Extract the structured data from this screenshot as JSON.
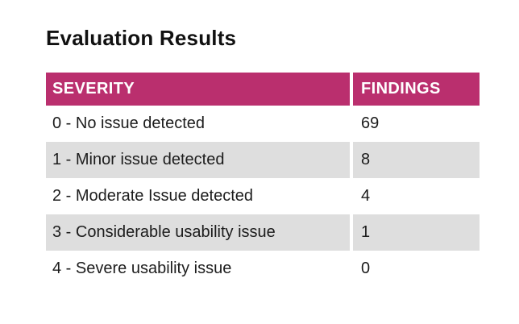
{
  "title": "Evaluation Results",
  "table": {
    "columns": [
      "SEVERITY",
      "FINDINGS"
    ],
    "rows": [
      {
        "severity": "0 - No issue detected",
        "findings": "69"
      },
      {
        "severity": "1 - Minor issue detected",
        "findings": "8"
      },
      {
        "severity": "2 - Moderate Issue detected",
        "findings": "4"
      },
      {
        "severity": "3 - Considerable usability issue",
        "findings": "1"
      },
      {
        "severity": "4 - Severe usability issue",
        "findings": "0"
      }
    ]
  },
  "colors": {
    "header-bg": "#BA2F6E",
    "header-text": "#FFFFFF",
    "row-alt-bg": "#DEDEDE",
    "body-text": "#1C1C1C"
  },
  "chart_data": {
    "type": "table",
    "title": "Evaluation Results",
    "columns": [
      "SEVERITY",
      "FINDINGS"
    ],
    "categories": [
      "0 - No issue detected",
      "1 - Minor issue detected",
      "2 - Moderate Issue detected",
      "3 - Considerable usability issue",
      "4 - Severe usability issue"
    ],
    "values": [
      69,
      8,
      4,
      1,
      0
    ]
  }
}
